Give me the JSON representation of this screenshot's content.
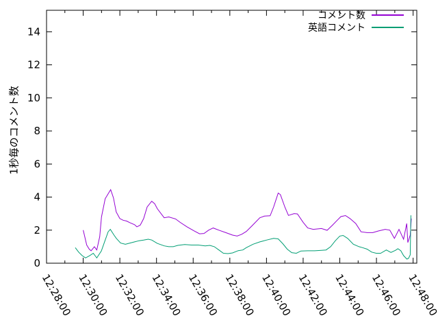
{
  "figure": {
    "background": "#ffffff",
    "axis_color": "#000000"
  },
  "chart_data": {
    "type": "line",
    "title": "",
    "xlabel": "",
    "ylabel": "1秒毎のコメント数",
    "x_unit": "minutes since 12:28:00",
    "xlim": [
      0,
      20.2
    ],
    "ylim": [
      0,
      15.3
    ],
    "grid": false,
    "legend_position": "top-right-inside",
    "y_ticks": [
      0,
      2,
      4,
      6,
      8,
      10,
      12,
      14
    ],
    "x_ticks": [
      {
        "t": 0,
        "label": "12:28:00"
      },
      {
        "t": 2,
        "label": "12:30:00"
      },
      {
        "t": 4,
        "label": "12:32:00"
      },
      {
        "t": 6,
        "label": "12:34:00"
      },
      {
        "t": 8,
        "label": "12:36:00"
      },
      {
        "t": 10,
        "label": "12:38:00"
      },
      {
        "t": 12,
        "label": "12:40:00"
      },
      {
        "t": 14,
        "label": "12:42:00"
      },
      {
        "t": 16,
        "label": "12:44:00"
      },
      {
        "t": 18,
        "label": "12:46:00"
      },
      {
        "t": 20,
        "label": "12:48:00"
      }
    ],
    "x_minor_ticks": [
      1,
      3,
      5,
      7,
      9,
      11,
      13,
      15,
      17,
      19
    ],
    "series": [
      {
        "name": "コメント数",
        "color": "#9400D3",
        "points": [
          [
            2.0,
            2.0
          ],
          [
            2.19,
            1.1
          ],
          [
            2.33,
            0.85
          ],
          [
            2.43,
            0.75
          ],
          [
            2.61,
            1.0
          ],
          [
            2.74,
            0.8
          ],
          [
            2.9,
            1.6
          ],
          [
            3.0,
            2.8
          ],
          [
            3.2,
            3.9
          ],
          [
            3.5,
            4.45
          ],
          [
            3.65,
            3.95
          ],
          [
            3.8,
            3.1
          ],
          [
            4.0,
            2.7
          ],
          [
            4.18,
            2.6
          ],
          [
            4.37,
            2.55
          ],
          [
            4.55,
            2.45
          ],
          [
            4.8,
            2.33
          ],
          [
            4.93,
            2.2
          ],
          [
            5.11,
            2.3
          ],
          [
            5.3,
            2.7
          ],
          [
            5.49,
            3.4
          ],
          [
            5.74,
            3.75
          ],
          [
            5.9,
            3.6
          ],
          [
            6.04,
            3.3
          ],
          [
            6.42,
            2.75
          ],
          [
            6.67,
            2.8
          ],
          [
            7.04,
            2.68
          ],
          [
            7.29,
            2.47
          ],
          [
            7.66,
            2.2
          ],
          [
            8.04,
            1.96
          ],
          [
            8.35,
            1.78
          ],
          [
            8.59,
            1.8
          ],
          [
            8.84,
            2.0
          ],
          [
            9.09,
            2.13
          ],
          [
            9.4,
            2.0
          ],
          [
            9.78,
            1.85
          ],
          [
            10.15,
            1.7
          ],
          [
            10.4,
            1.64
          ],
          [
            10.65,
            1.75
          ],
          [
            10.9,
            1.92
          ],
          [
            11.21,
            2.26
          ],
          [
            11.64,
            2.75
          ],
          [
            11.89,
            2.85
          ],
          [
            12.2,
            2.87
          ],
          [
            12.39,
            3.4
          ],
          [
            12.64,
            4.24
          ],
          [
            12.76,
            4.15
          ],
          [
            13.01,
            3.38
          ],
          [
            13.2,
            2.89
          ],
          [
            13.51,
            3.0
          ],
          [
            13.69,
            2.98
          ],
          [
            14.0,
            2.47
          ],
          [
            14.25,
            2.13
          ],
          [
            14.55,
            2.05
          ],
          [
            15.0,
            2.1
          ],
          [
            15.31,
            1.99
          ],
          [
            15.6,
            2.3
          ],
          [
            15.86,
            2.6
          ],
          [
            16.06,
            2.82
          ],
          [
            16.31,
            2.88
          ],
          [
            16.56,
            2.7
          ],
          [
            16.87,
            2.4
          ],
          [
            17.16,
            1.9
          ],
          [
            17.49,
            1.85
          ],
          [
            17.8,
            1.85
          ],
          [
            18.1,
            1.95
          ],
          [
            18.48,
            2.05
          ],
          [
            18.73,
            2.0
          ],
          [
            18.98,
            1.5
          ],
          [
            19.23,
            2.05
          ],
          [
            19.48,
            1.45
          ],
          [
            19.65,
            2.4
          ],
          [
            19.71,
            1.25
          ],
          [
            19.84,
            1.7
          ],
          [
            19.9,
            2.7
          ]
        ]
      },
      {
        "name": "英語コメント",
        "color": "#009E73",
        "points": [
          [
            1.57,
            0.94
          ],
          [
            1.75,
            0.67
          ],
          [
            1.94,
            0.46
          ],
          [
            2.13,
            0.32
          ],
          [
            2.35,
            0.45
          ],
          [
            2.55,
            0.6
          ],
          [
            2.74,
            0.32
          ],
          [
            2.99,
            0.74
          ],
          [
            3.17,
            1.3
          ],
          [
            3.36,
            1.9
          ],
          [
            3.48,
            2.05
          ],
          [
            3.68,
            1.7
          ],
          [
            3.81,
            1.5
          ],
          [
            4.04,
            1.22
          ],
          [
            4.3,
            1.15
          ],
          [
            4.55,
            1.22
          ],
          [
            4.8,
            1.29
          ],
          [
            5.05,
            1.36
          ],
          [
            5.3,
            1.4
          ],
          [
            5.55,
            1.45
          ],
          [
            5.74,
            1.4
          ],
          [
            6.04,
            1.2
          ],
          [
            6.42,
            1.05
          ],
          [
            6.67,
            1.0
          ],
          [
            6.91,
            1.0
          ],
          [
            7.16,
            1.08
          ],
          [
            7.54,
            1.13
          ],
          [
            7.91,
            1.1
          ],
          [
            8.28,
            1.1
          ],
          [
            8.66,
            1.05
          ],
          [
            8.91,
            1.08
          ],
          [
            9.15,
            1.0
          ],
          [
            9.4,
            0.8
          ],
          [
            9.65,
            0.6
          ],
          [
            9.9,
            0.58
          ],
          [
            10.15,
            0.62
          ],
          [
            10.46,
            0.76
          ],
          [
            10.71,
            0.8
          ],
          [
            10.9,
            0.94
          ],
          [
            11.27,
            1.15
          ],
          [
            11.64,
            1.29
          ],
          [
            12.01,
            1.4
          ],
          [
            12.39,
            1.5
          ],
          [
            12.64,
            1.47
          ],
          [
            12.89,
            1.18
          ],
          [
            13.13,
            0.85
          ],
          [
            13.38,
            0.64
          ],
          [
            13.63,
            0.6
          ],
          [
            13.88,
            0.74
          ],
          [
            14.25,
            0.75
          ],
          [
            14.63,
            0.75
          ],
          [
            15.0,
            0.78
          ],
          [
            15.25,
            0.8
          ],
          [
            15.5,
            1.0
          ],
          [
            15.75,
            1.35
          ],
          [
            16.0,
            1.64
          ],
          [
            16.18,
            1.68
          ],
          [
            16.43,
            1.5
          ],
          [
            16.74,
            1.15
          ],
          [
            17.05,
            1.0
          ],
          [
            17.24,
            0.94
          ],
          [
            17.49,
            0.85
          ],
          [
            17.74,
            0.67
          ],
          [
            17.99,
            0.6
          ],
          [
            18.23,
            0.6
          ],
          [
            18.54,
            0.8
          ],
          [
            18.79,
            0.65
          ],
          [
            19.04,
            0.78
          ],
          [
            19.17,
            0.88
          ],
          [
            19.33,
            0.75
          ],
          [
            19.48,
            0.46
          ],
          [
            19.66,
            0.25
          ],
          [
            19.75,
            0.29
          ],
          [
            19.84,
            0.5
          ],
          [
            19.88,
            2.9
          ]
        ]
      }
    ]
  }
}
